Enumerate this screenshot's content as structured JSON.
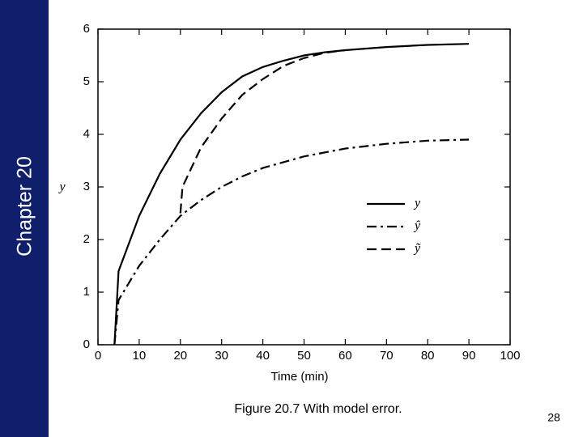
{
  "slide": {
    "side_label": "Chapter 20",
    "caption": "Figure 20.7 With model error.",
    "page_number": "28"
  },
  "chart_data": {
    "type": "line",
    "x_label": "Time (min)",
    "y_label": "y",
    "xlim": [
      0,
      100
    ],
    "xticks": [
      0,
      10,
      20,
      30,
      40,
      50,
      60,
      70,
      80,
      90,
      100
    ],
    "ylim": [
      0,
      6
    ],
    "yticks": [
      0,
      1,
      2,
      3,
      4,
      5,
      6
    ],
    "grid": false,
    "series": [
      {
        "name": "y",
        "color": "#000000",
        "dash": "solid",
        "x": [
          4,
          5,
          10,
          15,
          20,
          25,
          30,
          35,
          40,
          45,
          50,
          55,
          60,
          70,
          80,
          90
        ],
        "values": [
          0,
          1.4,
          2.45,
          3.25,
          3.9,
          4.4,
          4.8,
          5.1,
          5.28,
          5.4,
          5.5,
          5.56,
          5.6,
          5.66,
          5.7,
          5.72
        ]
      },
      {
        "name": "ŷ",
        "color": "#000000",
        "dash": "dashdot",
        "x": [
          4,
          5,
          10,
          15,
          20,
          25,
          30,
          35,
          40,
          50,
          60,
          70,
          80,
          90
        ],
        "values": [
          0,
          0.85,
          1.5,
          2.0,
          2.45,
          2.75,
          3.0,
          3.2,
          3.36,
          3.58,
          3.73,
          3.82,
          3.88,
          3.9
        ]
      },
      {
        "name": "ỹ",
        "color": "#000000",
        "dash": "dashed",
        "x": [
          20,
          20.5,
          25,
          30,
          35,
          40,
          45,
          50,
          55,
          60
        ],
        "values": [
          2.5,
          3.0,
          3.75,
          4.3,
          4.75,
          5.05,
          5.3,
          5.45,
          5.55,
          5.6
        ]
      }
    ]
  }
}
